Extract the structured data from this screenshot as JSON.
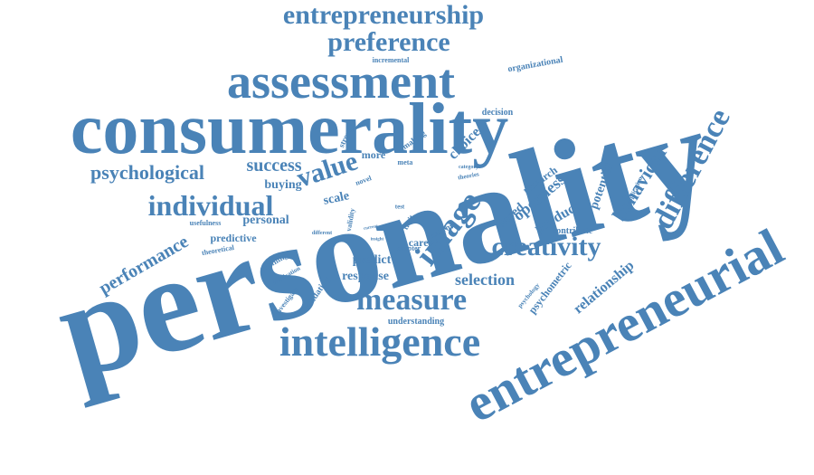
{
  "colors": {
    "word": "#4a83b7",
    "background": "#ffffff"
  },
  "words": [
    "personality",
    "consumerality",
    "entrepreneurial",
    "assessment",
    "intelligence",
    "entrepreneurship",
    "preference",
    "measure",
    "individual",
    "image",
    "creativity",
    "difference",
    "psychological",
    "value",
    "success",
    "performance",
    "behaviour",
    "openness",
    "selection",
    "relationship",
    "psychometric",
    "potential",
    "product",
    "based",
    "research",
    "choice",
    "career",
    "predict",
    "response",
    "more",
    "buying",
    "personal",
    "predictive",
    "scale",
    "decision",
    "organizational",
    "incremental",
    "making",
    "stronger",
    "profiling",
    "validating",
    "investigate",
    "implication",
    "understanding",
    "usefulness",
    "theoretical",
    "chapter",
    "narrow",
    "trait",
    "contribute",
    "psychology",
    "application",
    "theories",
    "category",
    "meta",
    "novel",
    "validity",
    "different",
    "insight",
    "current",
    "test"
  ]
}
